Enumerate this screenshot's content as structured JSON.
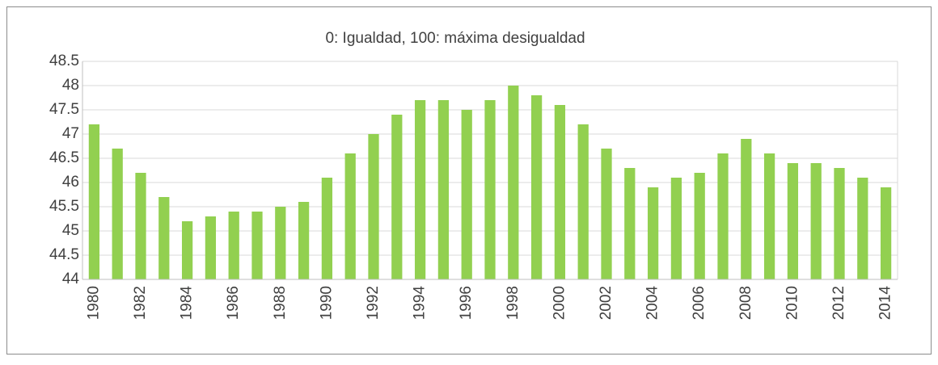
{
  "chart_data": {
    "type": "bar",
    "title": "0: Igualdad, 100: máxima desigualdad",
    "categories": [
      "1980",
      null,
      "1982",
      null,
      "1984",
      null,
      "1986",
      null,
      "1988",
      null,
      "1990",
      null,
      "1992",
      null,
      "1994",
      null,
      "1996",
      null,
      "1998",
      null,
      "2000",
      null,
      "2002",
      null,
      "2004",
      null,
      "2006",
      null,
      "2008",
      null,
      "2010",
      null,
      "2012",
      null,
      "2014"
    ],
    "values": [
      47.2,
      46.7,
      46.2,
      45.7,
      45.2,
      45.3,
      45.4,
      45.4,
      45.5,
      45.6,
      46.1,
      46.6,
      47.0,
      47.4,
      47.7,
      47.7,
      47.5,
      47.7,
      48.0,
      47.8,
      47.6,
      47.2,
      46.7,
      46.3,
      45.9,
      46.1,
      46.2,
      46.6,
      46.9,
      46.6,
      46.4,
      46.4,
      46.3,
      46.1,
      45.9
    ],
    "color": "#92d050",
    "ylim": [
      44,
      48.5
    ],
    "yticks": [
      44,
      44.5,
      45,
      45.5,
      46,
      46.5,
      47,
      47.5,
      48,
      48.5
    ],
    "grid": true
  }
}
